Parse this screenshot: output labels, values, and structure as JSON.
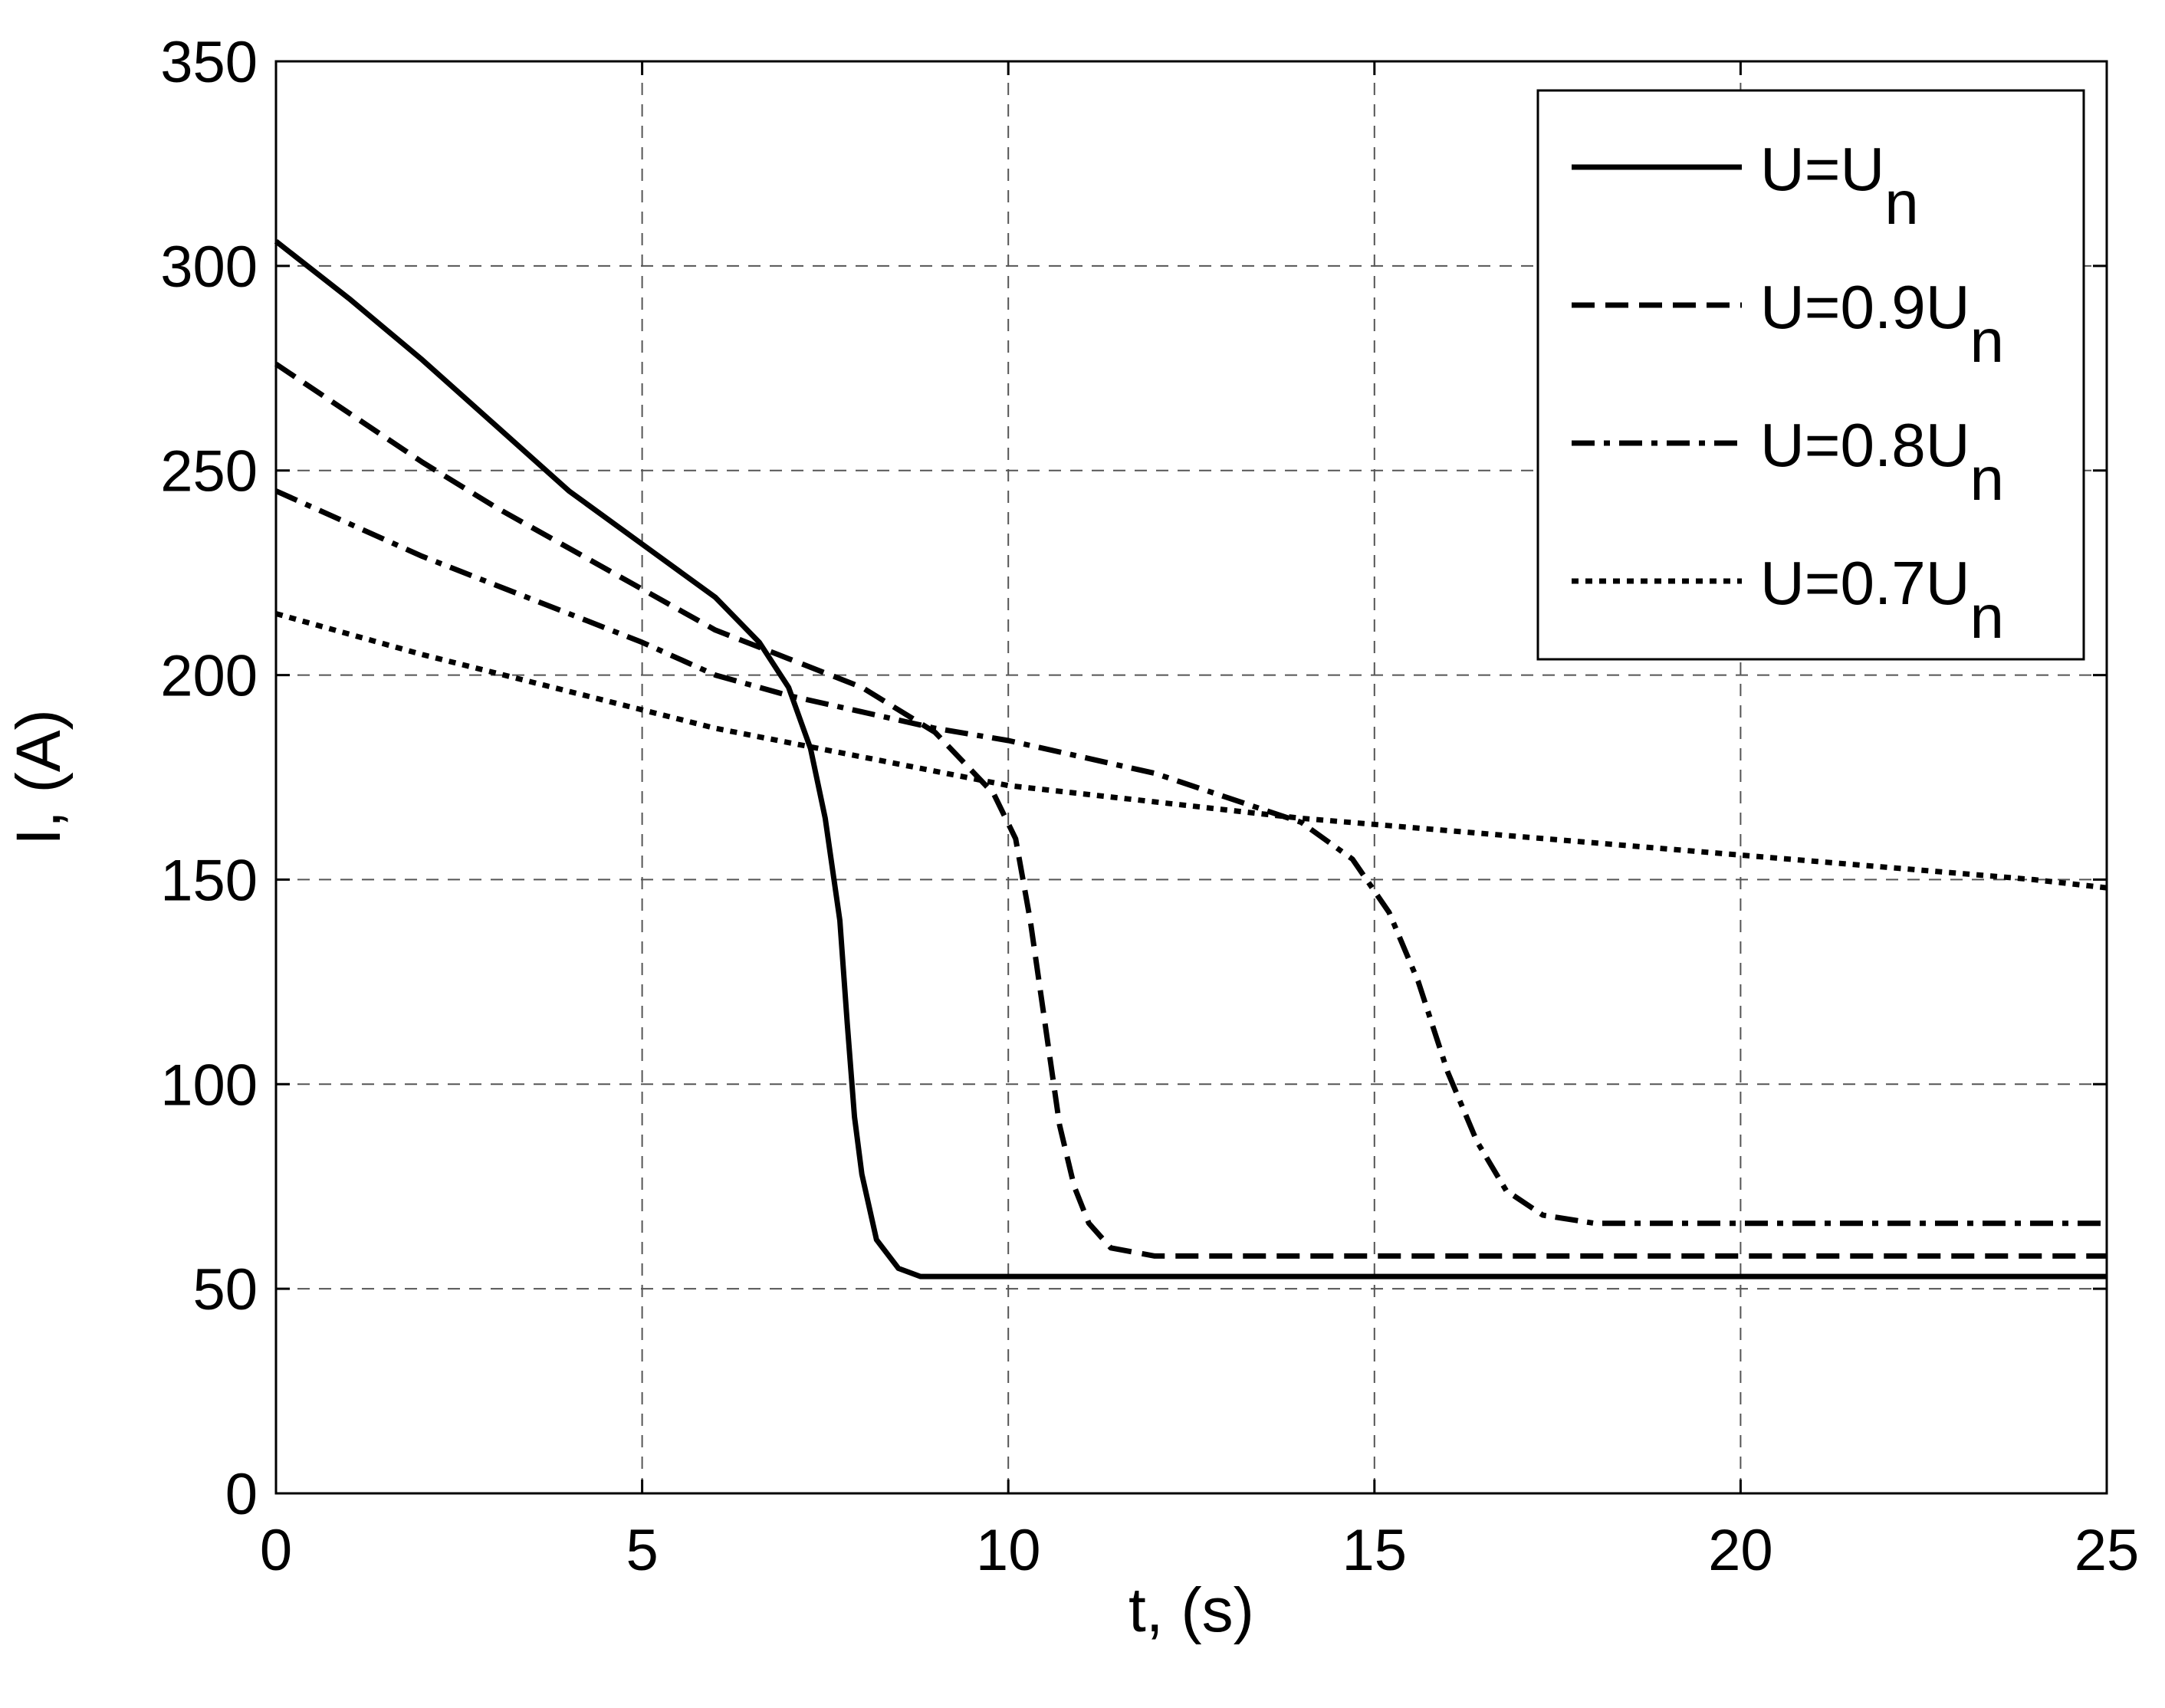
{
  "chart_data": {
    "type": "line",
    "title": "",
    "xlabel": "t, (s)",
    "ylabel": "I, (A)",
    "xlim": [
      0,
      25
    ],
    "ylim": [
      0,
      350
    ],
    "xticks": [
      "0",
      "5",
      "10",
      "15",
      "20",
      "25"
    ],
    "yticks": [
      "0",
      "50",
      "100",
      "150",
      "200",
      "250",
      "300",
      "350"
    ],
    "grid": true,
    "legend_position": "top-right",
    "series": [
      {
        "name": "U=Un",
        "legend_main": "U=U",
        "legend_sub": "n",
        "style": "solid",
        "x": [
          0,
          1,
          2,
          3,
          4,
          5,
          6,
          6.6,
          7.0,
          7.3,
          7.5,
          7.7,
          7.8,
          7.9,
          8.0,
          8.2,
          8.5,
          8.8,
          9.5,
          12,
          15,
          20,
          25
        ],
        "y": [
          306,
          292,
          277,
          261,
          245,
          232,
          219,
          208,
          197,
          182,
          165,
          140,
          115,
          92,
          78,
          62,
          55,
          53,
          53,
          53,
          53,
          53,
          53
        ]
      },
      {
        "name": "U=0.9Un",
        "legend_main": "U=0.9U",
        "legend_sub": "n",
        "style": "dashed",
        "x": [
          0,
          1,
          2,
          3,
          4,
          5,
          6,
          7,
          8,
          9,
          9.8,
          10.1,
          10.3,
          10.5,
          10.7,
          10.9,
          11.1,
          11.4,
          12,
          15,
          20,
          25
        ],
        "y": [
          276,
          264,
          252,
          241,
          231,
          221,
          211,
          204,
          197,
          186,
          171,
          160,
          140,
          115,
          90,
          75,
          66,
          60,
          58,
          58,
          58,
          58
        ]
      },
      {
        "name": "U=0.8Un",
        "legend_main": "U=0.8U",
        "legend_sub": "n",
        "style": "dashdot",
        "x": [
          0,
          1,
          2,
          3,
          4,
          5,
          6,
          7,
          8,
          9,
          10,
          11,
          12,
          13,
          14,
          14.7,
          15.2,
          15.6,
          16.0,
          16.4,
          16.8,
          17.3,
          18,
          20,
          25
        ],
        "y": [
          245,
          237,
          229,
          222,
          215,
          208,
          200,
          195,
          191,
          187,
          184,
          180,
          176,
          170,
          164,
          155,
          142,
          125,
          103,
          86,
          74,
          68,
          66,
          66,
          66
        ]
      },
      {
        "name": "U=0.7Un",
        "legend_main": "U=0.7U",
        "legend_sub": "n",
        "style": "dotted",
        "x": [
          0,
          2,
          4,
          6,
          8,
          10,
          12,
          14,
          16,
          18,
          20,
          22,
          24,
          25
        ],
        "y": [
          215,
          205,
          196,
          187,
          180,
          173,
          169,
          165,
          162,
          159,
          156,
          153,
          150,
          148
        ]
      }
    ]
  }
}
